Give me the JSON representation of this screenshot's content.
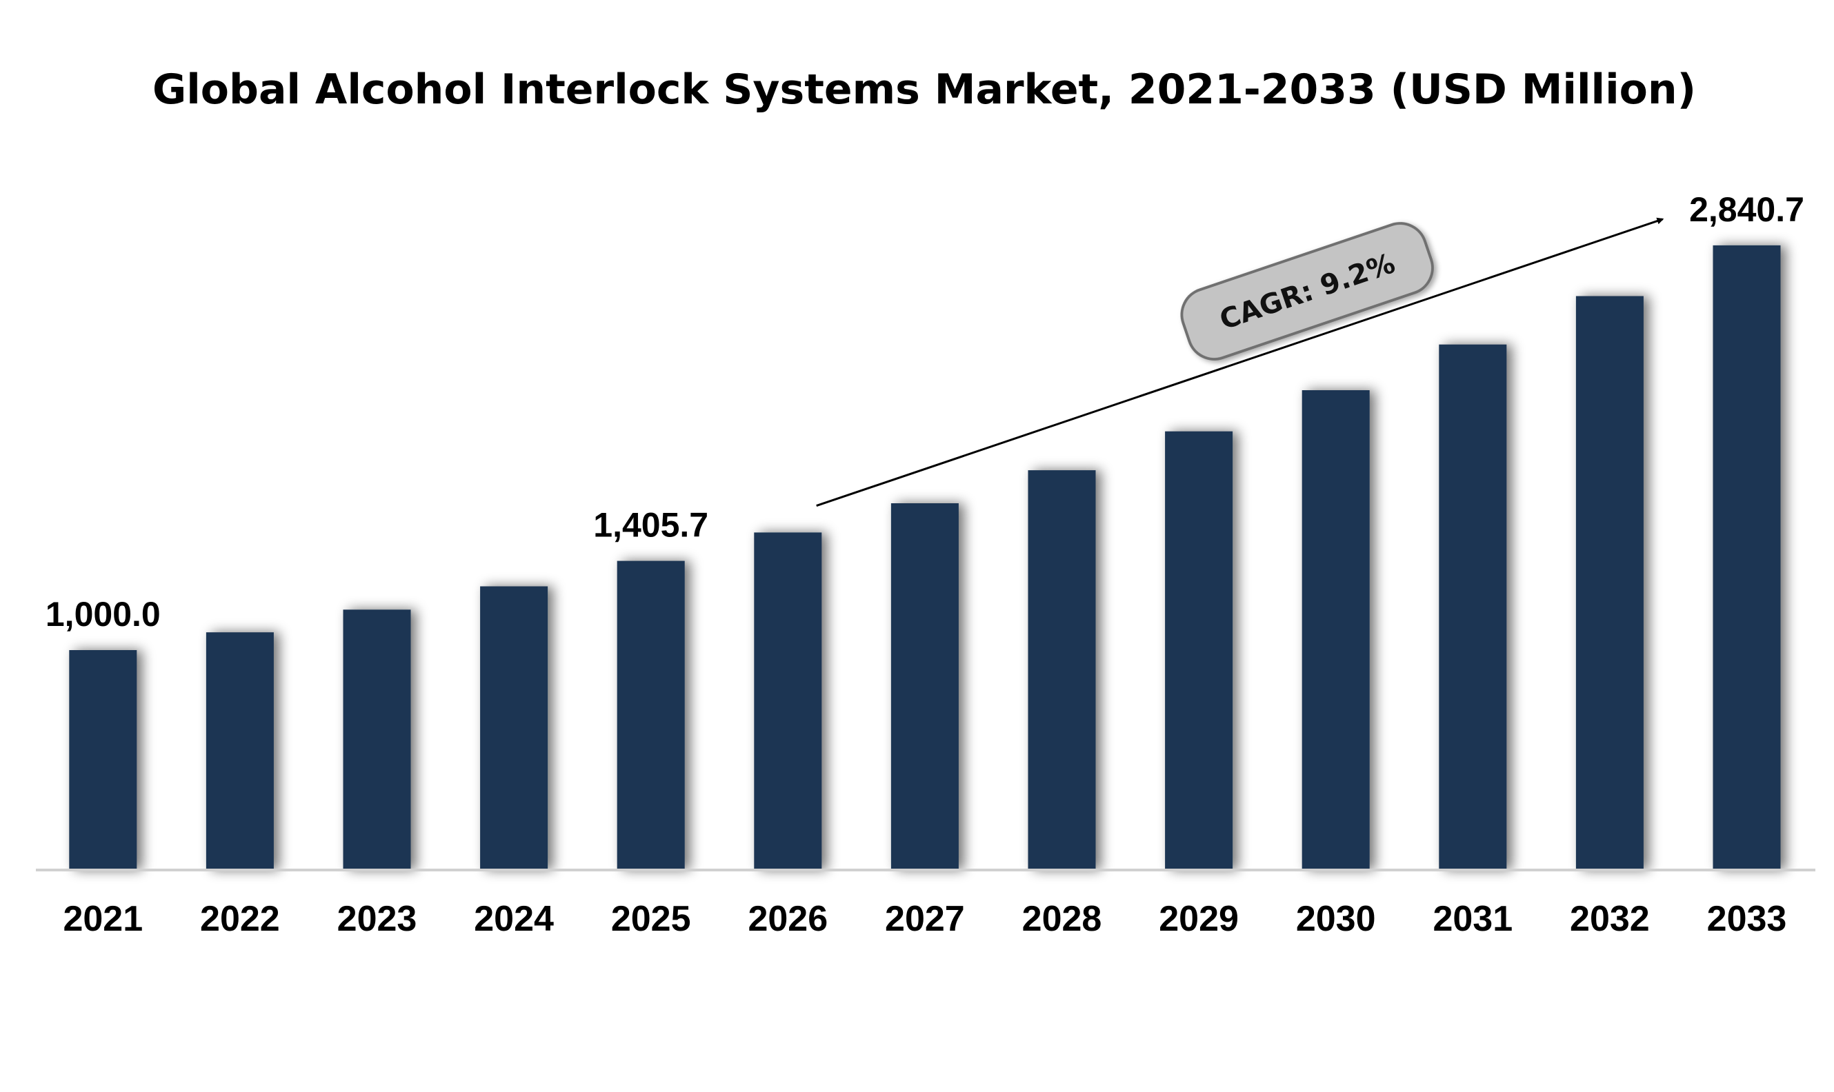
{
  "chart_data": {
    "type": "bar",
    "title": "Global Alcohol Interlock Systems Market, 2021-2033 (USD Million)",
    "categories": [
      "2021",
      "2022",
      "2023",
      "2024",
      "2025",
      "2026",
      "2027",
      "2028",
      "2029",
      "2030",
      "2031",
      "2032",
      "2033"
    ],
    "values": [
      1000.0,
      1081.0,
      1184.0,
      1290.0,
      1405.7,
      1535.0,
      1668.0,
      1818.0,
      1995.0,
      2182.0,
      2390.0,
      2610.0,
      2840.7
    ],
    "data_labels": [
      {
        "category": "2021",
        "text": "1,000.0"
      },
      {
        "category": "2025",
        "text": "1,405.7"
      },
      {
        "category": "2033",
        "text": "2,840.7"
      }
    ],
    "annotation": {
      "text": "CAGR: 9.2%",
      "from": "2025",
      "to": "2033"
    },
    "ylim": [
      0,
      2900
    ],
    "grid": false,
    "legend": "none",
    "colors": {
      "bar": "#1b3452",
      "bar_shadow": "#7a7a7a",
      "axis": "#d0d0d0",
      "badge_fill": "#c4c4c4",
      "badge_stroke": "#707070",
      "arrow": "#000000"
    }
  }
}
